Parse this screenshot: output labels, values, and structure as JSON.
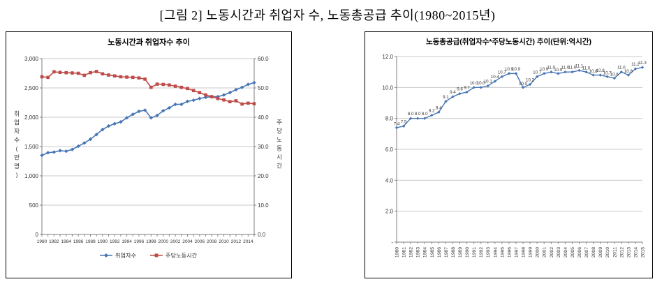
{
  "figure_title": "[그림 2] 노동시간과 취업자 수, 노동총공급 추이(1980~2015년)",
  "colors": {
    "series_blue": "#4675b4",
    "series_red": "#be4b48",
    "grid": "#c9c9c9",
    "axis": "#7f7f7f",
    "label_text": "#404040"
  },
  "chart_data": [
    {
      "type": "line",
      "title": "노동시간과 취업자수 추이",
      "x_years": [
        "1980",
        "1981",
        "1982",
        "1983",
        "1984",
        "1985",
        "1986",
        "1987",
        "1988",
        "1989",
        "1990",
        "1991",
        "1992",
        "1993",
        "1994",
        "1995",
        "1996",
        "1997",
        "1998",
        "1999",
        "2000",
        "2001",
        "2002",
        "2003",
        "2004",
        "2005",
        "2006",
        "2007",
        "2008",
        "2009",
        "2010",
        "2011",
        "2012",
        "2013",
        "2014",
        "2015"
      ],
      "x_tick_labels": [
        "1980",
        "1982",
        "1984",
        "1986",
        "1988",
        "1990",
        "1992",
        "1994",
        "1996",
        "1998",
        "2000",
        "2002",
        "2004",
        "2006",
        "2008",
        "2010",
        "2012",
        "2014"
      ],
      "series": [
        {
          "name": "취업자수",
          "axis": "left",
          "color": "#4675b4",
          "marker": "diamond",
          "values": [
            1350,
            1395,
            1405,
            1430,
            1420,
            1450,
            1505,
            1560,
            1625,
            1705,
            1790,
            1850,
            1890,
            1920,
            1990,
            2050,
            2100,
            2120,
            1990,
            2030,
            2110,
            2160,
            2220,
            2220,
            2270,
            2290,
            2320,
            2340,
            2350,
            2350,
            2380,
            2420,
            2470,
            2510,
            2560,
            2590
          ]
        },
        {
          "name": "주당노동시간",
          "axis": "right",
          "color": "#be4b48",
          "marker": "square",
          "values": [
            53.8,
            53.6,
            55.5,
            55.3,
            55.2,
            55.1,
            55.0,
            54.3,
            55.2,
            55.6,
            54.8,
            54.4,
            54.1,
            53.8,
            53.7,
            53.6,
            53.4,
            53.0,
            50.2,
            51.3,
            51.2,
            51.0,
            50.6,
            50.2,
            49.8,
            49.1,
            48.4,
            47.6,
            47.0,
            46.4,
            45.9,
            45.3,
            45.6,
            44.5,
            44.8,
            44.6
          ]
        }
      ],
      "left_axis": {
        "title": "취업자수(만명)",
        "min": 0,
        "max": 3000,
        "step": 500,
        "tick_labels": [
          "0",
          "500",
          "1,000",
          "1,500",
          "2,000",
          "2,500",
          "3,000"
        ]
      },
      "right_axis": {
        "title": "주당노동시간",
        "min": 0,
        "max": 60,
        "step": 10,
        "tick_labels": [
          "0.0",
          "10.0",
          "20.0",
          "30.0",
          "40.0",
          "50.0",
          "60.0"
        ]
      },
      "legend": [
        "취업자수",
        "주당노동시간"
      ],
      "legend_position": "bottom",
      "grid": true
    },
    {
      "type": "line",
      "title": "노동총공급(취업자수*주당노동시간) 추이(단위:억시간)",
      "x_years": [
        "1980",
        "1981",
        "1982",
        "1983",
        "1984",
        "1985",
        "1986",
        "1987",
        "1988",
        "1989",
        "1990",
        "1991",
        "1992",
        "1993",
        "1994",
        "1995",
        "1996",
        "1997",
        "1998",
        "1999",
        "2000",
        "2001",
        "2002",
        "2003",
        "2004",
        "2005",
        "2006",
        "2007",
        "2008",
        "2009",
        "2010",
        "2011",
        "2012",
        "2013",
        "2014",
        "2015"
      ],
      "values": [
        7.4,
        7.5,
        8.0,
        8.0,
        8.0,
        8.2,
        8.4,
        9.1,
        9.4,
        9.6,
        9.7,
        10.0,
        10.0,
        10.1,
        10.4,
        10.7,
        10.9,
        10.9,
        10.0,
        10.2,
        10.7,
        10.9,
        11.0,
        10.9,
        11.0,
        11.0,
        11.1,
        11.0,
        10.8,
        10.8,
        10.7,
        10.6,
        11.0,
        10.8,
        11.2,
        11.3
      ],
      "data_labels": [
        "7.4",
        "7.5",
        "8.0",
        "8.0",
        "8.0",
        "8.2",
        "8.4",
        "9.1",
        "9.4",
        "9.6",
        "9.7",
        "10.0",
        "10.0",
        "10.1",
        "10.4",
        "10.7",
        "10.9",
        "10.9",
        "10.0",
        "10.2",
        "10.7",
        "10.9",
        "11.0",
        "10.9",
        "11.0",
        "11.0",
        "11.1",
        "11.0",
        "10.8",
        "10.8",
        "10.7",
        "10.6",
        "11.0",
        "10.8",
        "11.2",
        "11.3"
      ],
      "y_axis": {
        "min": 0,
        "max": 12,
        "step": 2,
        "tick_labels": [
          "-",
          "2.0",
          "4.0",
          "6.0",
          "8.0",
          "10.0",
          "12.0"
        ]
      },
      "color": "#4675b4",
      "marker": "diamond",
      "grid": true
    }
  ]
}
